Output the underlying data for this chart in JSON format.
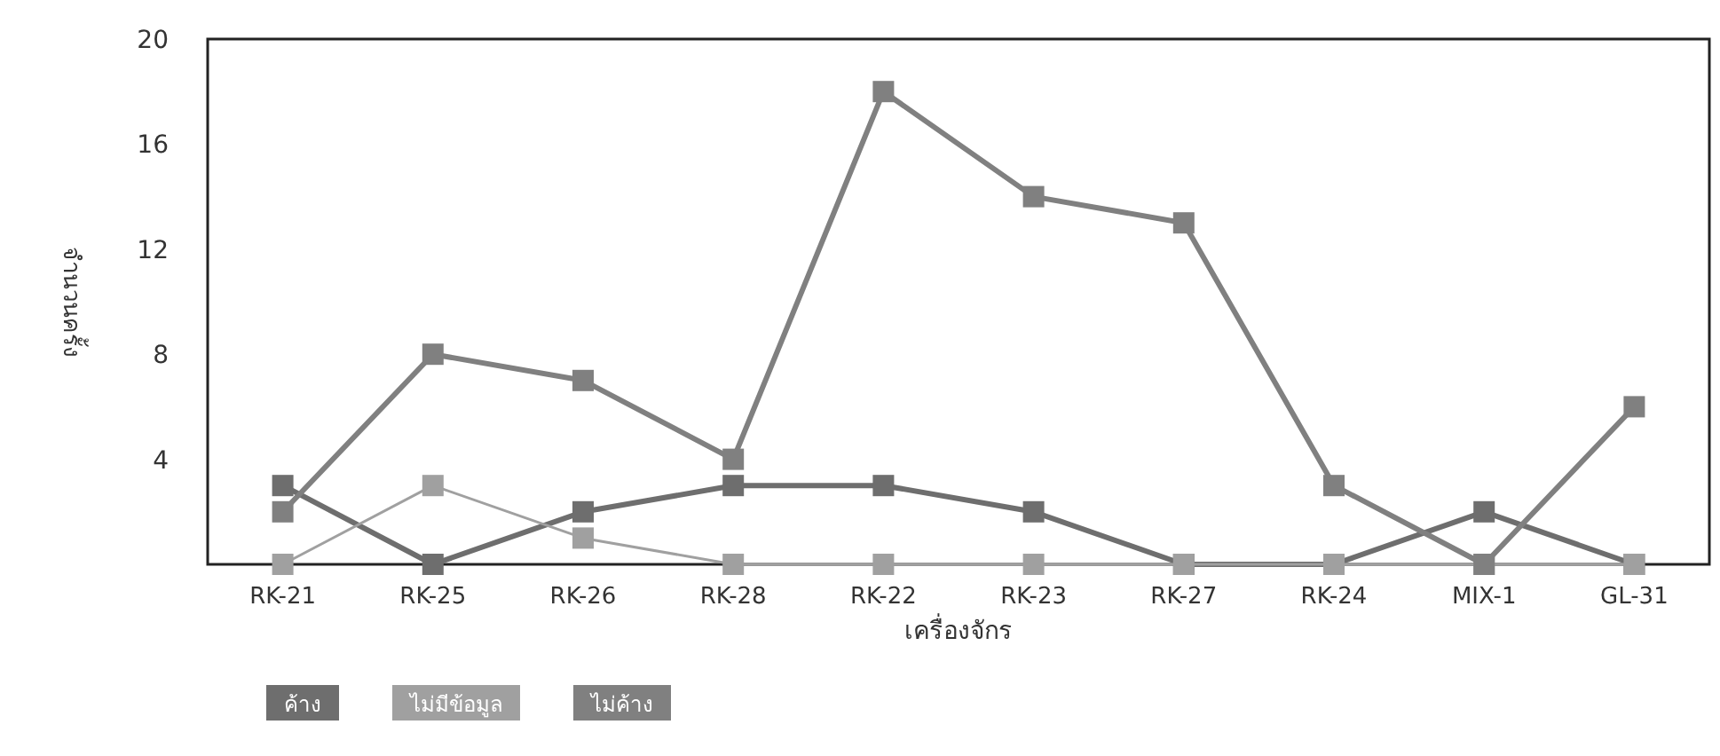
{
  "chart_data": {
    "type": "line",
    "ylabel": "จำนวนครั้ง",
    "xlabel": "เครื่องจักร",
    "categories": [
      "RK-21",
      "RK-25",
      "RK-26",
      "RK-28",
      "RK-22",
      "RK-23",
      "RK-27",
      "RK-24",
      "MIX-1",
      "GL-31"
    ],
    "series": [
      {
        "name": "ค้าง",
        "color": "#6e6e6e",
        "values": [
          3,
          0,
          2,
          3,
          3,
          2,
          0,
          0,
          2,
          0
        ],
        "line_style": "solid"
      },
      {
        "name": "ไม่มีข้อมูล",
        "color": "#a0a0a0",
        "values": [
          0,
          3,
          1,
          0,
          0,
          0,
          0,
          0,
          0,
          0
        ],
        "line_style": "solid"
      },
      {
        "name": "ไม่ค้าง",
        "color": "#808080",
        "values": [
          2,
          8,
          7,
          4,
          18,
          14,
          13,
          3,
          0,
          6
        ],
        "line_style": "solid"
      }
    ],
    "ylim": [
      0,
      20
    ],
    "yticks": [
      4,
      8,
      12,
      16,
      20
    ],
    "marker": "square",
    "legend": "bottom left",
    "grid": false
  }
}
